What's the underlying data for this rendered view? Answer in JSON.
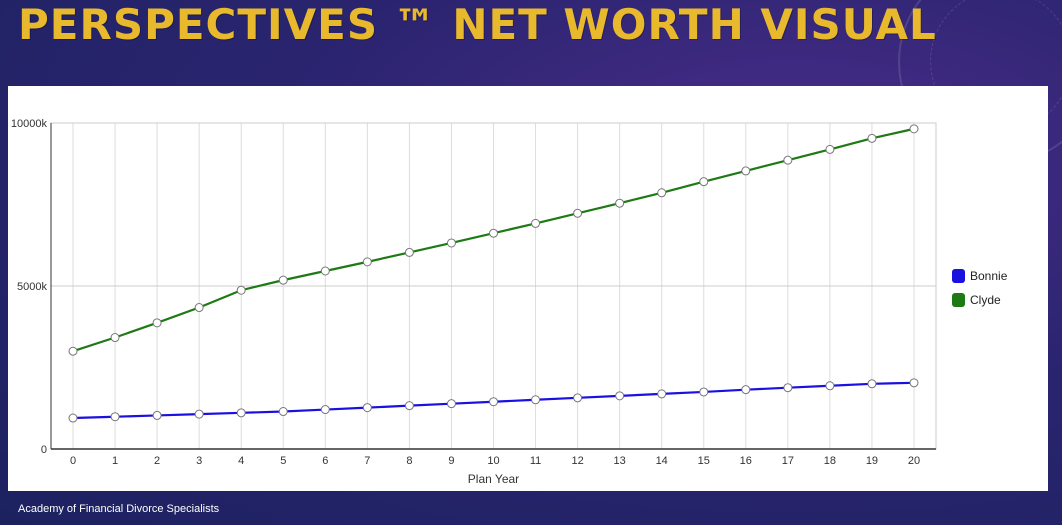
{
  "slide": {
    "title": "PERSPECTIVES ™ NET WORTH VISUAL",
    "footer": "Academy of Financial Divorce Specialists"
  },
  "chart_data": {
    "type": "line",
    "title": "",
    "xlabel": "Plan Year",
    "ylabel": "",
    "x": [
      0,
      1,
      2,
      3,
      4,
      5,
      6,
      7,
      8,
      9,
      10,
      11,
      12,
      13,
      14,
      15,
      16,
      17,
      18,
      19,
      20
    ],
    "ylim": [
      0,
      10000
    ],
    "yticks": [
      {
        "value": 0,
        "label": "0"
      },
      {
        "value": 5000,
        "label": "5000k"
      },
      {
        "value": 10000,
        "label": "10000k"
      }
    ],
    "grid": true,
    "legend_position": "right",
    "series": [
      {
        "name": "Bonnie",
        "color": "#1a10e0",
        "values": [
          950,
          990,
          1030,
          1070,
          1110,
          1150,
          1210,
          1270,
          1330,
          1390,
          1450,
          1510,
          1570,
          1630,
          1690,
          1750,
          1820,
          1880,
          1940,
          2000,
          2030
        ]
      },
      {
        "name": "Clyde",
        "color": "#1e7a14",
        "values": [
          3000,
          3420,
          3870,
          4340,
          4870,
          5180,
          5460,
          5740,
          6030,
          6320,
          6620,
          6920,
          7230,
          7540,
          7860,
          8200,
          8530,
          8860,
          9190,
          9530,
          9820
        ]
      }
    ]
  }
}
